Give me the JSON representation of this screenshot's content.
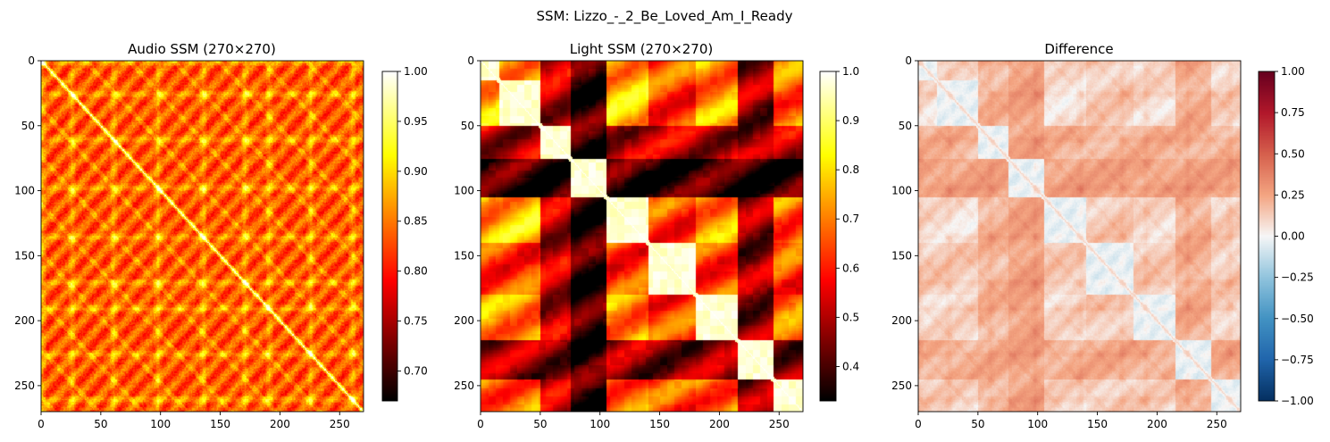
{
  "suptitle": "SSM: Lizzo_-_2_Be_Loved_Am_I_Ready",
  "chart_data": [
    {
      "type": "heatmap",
      "title": "Audio SSM (270×270)",
      "xlabel": "",
      "ylabel": "",
      "n": 270,
      "xlim": [
        0,
        270
      ],
      "ylim": [
        270,
        0
      ],
      "x_ticks": [
        0,
        50,
        100,
        150,
        200,
        250
      ],
      "y_ticks": [
        0,
        50,
        100,
        150,
        200,
        250
      ],
      "colormap": "hot",
      "value_range": [
        0.67,
        1.0
      ],
      "colorbar_ticks": [
        0.7,
        0.75,
        0.8,
        0.85,
        0.9,
        0.95,
        1.0
      ],
      "colorbar_tick_labels": [
        "0.70",
        "0.75",
        "0.80",
        "0.85",
        "0.90",
        "0.95",
        "1.00"
      ],
      "approx_structure": {
        "diagonal": 1.0,
        "bright_band_centers": [
          0,
          25,
          60,
          97,
          135,
          170,
          190,
          225,
          260
        ],
        "background_level": 0.83
      }
    },
    {
      "type": "heatmap",
      "title": "Light SSM (270×270)",
      "xlabel": "",
      "ylabel": "",
      "n": 270,
      "xlim": [
        0,
        270
      ],
      "ylim": [
        270,
        0
      ],
      "x_ticks": [
        0,
        50,
        100,
        150,
        200,
        250
      ],
      "y_ticks": [
        0,
        50,
        100,
        150,
        200,
        250
      ],
      "colormap": "hot",
      "value_range": [
        0.33,
        1.0
      ],
      "colorbar_ticks": [
        0.4,
        0.5,
        0.6,
        0.7,
        0.8,
        0.9,
        1.0
      ],
      "colorbar_tick_labels": [
        "0.4",
        "0.5",
        "0.6",
        "0.7",
        "0.8",
        "0.9",
        "1.0"
      ],
      "approx_segments": [
        {
          "start": 0,
          "end": 15,
          "level": 0.88
        },
        {
          "start": 15,
          "end": 50,
          "level": 0.95
        },
        {
          "start": 50,
          "end": 75,
          "level": 0.6
        },
        {
          "start": 75,
          "end": 105,
          "level": 0.45
        },
        {
          "start": 105,
          "end": 140,
          "level": 0.9
        },
        {
          "start": 140,
          "end": 180,
          "level": 0.75
        },
        {
          "start": 180,
          "end": 215,
          "level": 0.85
        },
        {
          "start": 215,
          "end": 245,
          "level": 0.55
        },
        {
          "start": 245,
          "end": 270,
          "level": 0.8
        }
      ]
    },
    {
      "type": "heatmap",
      "title": "Difference",
      "xlabel": "",
      "ylabel": "",
      "n": 270,
      "xlim": [
        0,
        270
      ],
      "ylim": [
        270,
        0
      ],
      "x_ticks": [
        0,
        50,
        100,
        150,
        200,
        250
      ],
      "y_ticks": [
        0,
        50,
        100,
        150,
        200,
        250
      ],
      "colormap": "RdBu_r",
      "value_range": [
        -1.0,
        1.0
      ],
      "colorbar_ticks": [
        -1.0,
        -0.75,
        -0.5,
        -0.25,
        0.0,
        0.25,
        0.5,
        0.75,
        1.0
      ],
      "colorbar_tick_labels": [
        "−1.00",
        "−0.75",
        "−0.50",
        "−0.25",
        "0.00",
        "0.25",
        "0.50",
        "0.75",
        "1.00"
      ],
      "approx_range_shown": [
        -0.1,
        0.45
      ]
    }
  ]
}
